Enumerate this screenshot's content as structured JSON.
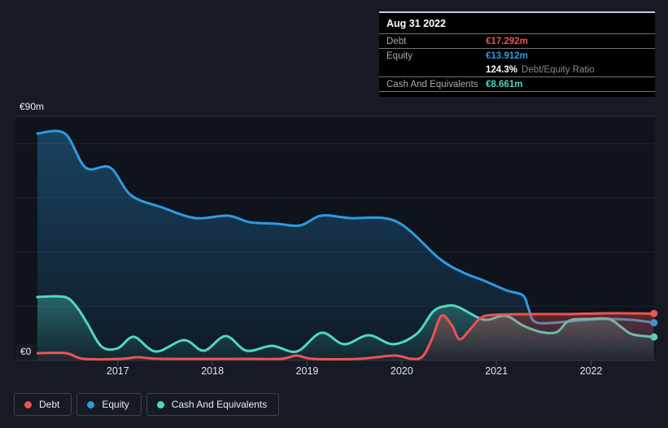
{
  "page": {
    "background": "#151a23"
  },
  "tooltip": {
    "date": "Aug 31 2022",
    "debt_label": "Debt",
    "debt_value": "€17.292m",
    "equity_label": "Equity",
    "equity_value": "€13.912m",
    "ratio_value": "124.3%",
    "ratio_label": "Debt/Equity Ratio",
    "cash_label": "Cash And Equivalents",
    "cash_value": "€8.661m"
  },
  "chart_data": {
    "type": "area",
    "unit": "€m",
    "y_axis_top_label": "€90m",
    "y_axis_bottom_label": "€0",
    "y_range": [
      0,
      90
    ],
    "y_gridlines": [
      20,
      40,
      60,
      80
    ],
    "x_range": [
      2015.91,
      2022.675
    ],
    "x_ticks": [
      2017,
      2018,
      2019,
      2020,
      2021,
      2022
    ],
    "grid_color": "#1d232d",
    "border_color": "#2d343f",
    "tick_color": "#49505a",
    "plot_bg": "#0e131c",
    "series": [
      {
        "name": "Debt",
        "color": "#ec5353",
        "last_value_label": "€17.292m",
        "points": [
          [
            2016.15,
            2.7
          ],
          [
            2016.45,
            2.7
          ],
          [
            2016.64,
            0.6
          ],
          [
            2017.04,
            0.6
          ],
          [
            2017.21,
            1.2
          ],
          [
            2017.47,
            0.6
          ],
          [
            2018.33,
            0.6
          ],
          [
            2018.72,
            0.6
          ],
          [
            2018.89,
            1.8
          ],
          [
            2019.06,
            0.6
          ],
          [
            2019.54,
            0.6
          ],
          [
            2019.92,
            1.8
          ],
          [
            2020.1,
            0.6
          ],
          [
            2020.22,
            1.5
          ],
          [
            2020.32,
            8.0
          ],
          [
            2020.42,
            16.5
          ],
          [
            2020.53,
            12.9
          ],
          [
            2020.61,
            7.8
          ],
          [
            2020.72,
            11.4
          ],
          [
            2020.83,
            15.6
          ],
          [
            2020.96,
            16.8
          ],
          [
            2021.34,
            17.1
          ],
          [
            2021.77,
            17.1
          ],
          [
            2022.2,
            17.4
          ],
          [
            2022.664,
            17.292
          ]
        ]
      },
      {
        "name": "Equity",
        "color": "#2e9be2",
        "last_value_label": "€13.912m",
        "points": [
          [
            2016.15,
            83.7
          ],
          [
            2016.44,
            83.7
          ],
          [
            2016.66,
            71.1
          ],
          [
            2016.92,
            71.1
          ],
          [
            2017.14,
            60.9
          ],
          [
            2017.47,
            56.4
          ],
          [
            2017.82,
            52.5
          ],
          [
            2018.16,
            53.4
          ],
          [
            2018.39,
            51.0
          ],
          [
            2018.68,
            50.4
          ],
          [
            2018.93,
            49.8
          ],
          [
            2019.15,
            53.4
          ],
          [
            2019.45,
            52.5
          ],
          [
            2019.94,
            51.3
          ],
          [
            2020.4,
            37.5
          ],
          [
            2020.65,
            32.4
          ],
          [
            2020.87,
            29.4
          ],
          [
            2021.11,
            25.8
          ],
          [
            2021.28,
            24.0
          ],
          [
            2021.34,
            19.0
          ],
          [
            2021.4,
            14.4
          ],
          [
            2021.56,
            13.8
          ],
          [
            2021.86,
            14.7
          ],
          [
            2022.12,
            15.3
          ],
          [
            2022.42,
            15.0
          ],
          [
            2022.664,
            13.912
          ]
        ]
      },
      {
        "name": "Cash And Equivalents",
        "color": "#4fd8c1",
        "last_value_label": "€8.661m",
        "points": [
          [
            2016.15,
            23.4
          ],
          [
            2016.44,
            23.4
          ],
          [
            2016.57,
            19.5
          ],
          [
            2016.68,
            13.5
          ],
          [
            2016.83,
            5.1
          ],
          [
            2017.0,
            4.5
          ],
          [
            2017.17,
            8.7
          ],
          [
            2017.4,
            3.3
          ],
          [
            2017.7,
            7.5
          ],
          [
            2017.91,
            3.6
          ],
          [
            2018.14,
            9.0
          ],
          [
            2018.36,
            3.6
          ],
          [
            2018.63,
            5.4
          ],
          [
            2018.89,
            3.3
          ],
          [
            2019.15,
            10.2
          ],
          [
            2019.39,
            6.0
          ],
          [
            2019.65,
            9.3
          ],
          [
            2019.91,
            6.0
          ],
          [
            2020.16,
            9.9
          ],
          [
            2020.33,
            18.0
          ],
          [
            2020.47,
            20.1
          ],
          [
            2020.59,
            19.8
          ],
          [
            2020.8,
            15.9
          ],
          [
            2020.91,
            15.0
          ],
          [
            2021.1,
            16.5
          ],
          [
            2021.28,
            12.9
          ],
          [
            2021.47,
            10.5
          ],
          [
            2021.64,
            10.5
          ],
          [
            2021.77,
            14.7
          ],
          [
            2021.99,
            15.3
          ],
          [
            2022.19,
            15.3
          ],
          [
            2022.33,
            12.0
          ],
          [
            2022.44,
            9.6
          ],
          [
            2022.664,
            8.661
          ]
        ]
      }
    ]
  }
}
